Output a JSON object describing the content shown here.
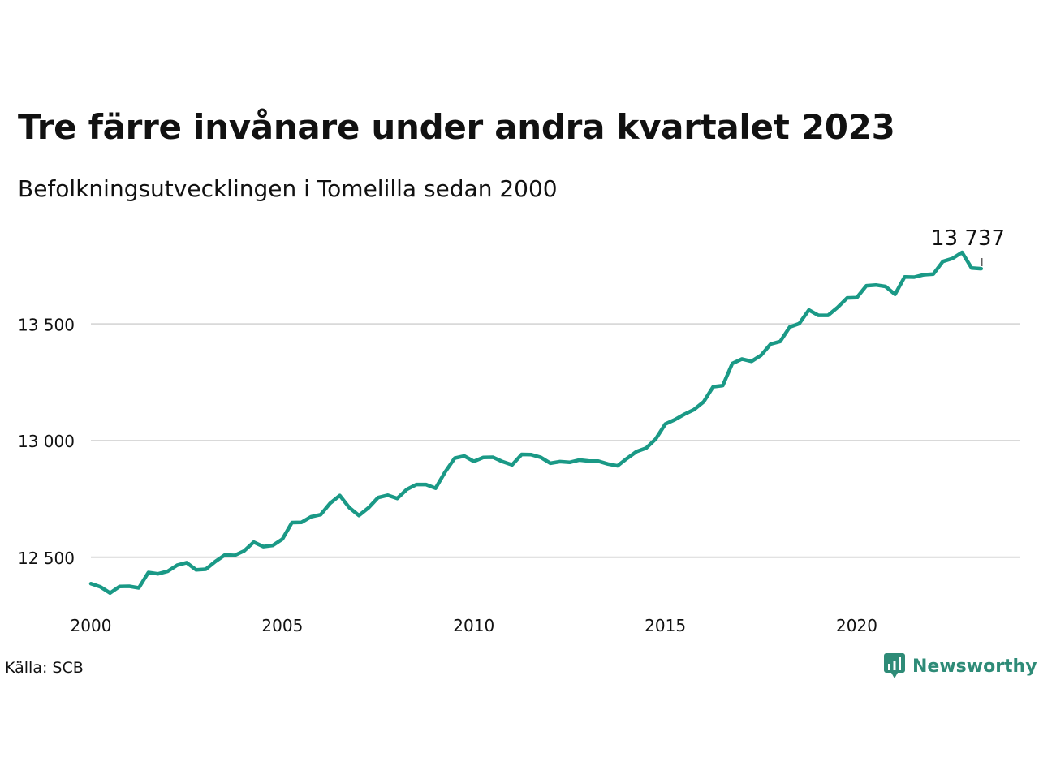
{
  "title": "Tre färre invånare under andra kvartalet 2023",
  "subtitle": "Befolkningsutvecklingen i Tomelilla sedan 2000",
  "source": "Källa: SCB",
  "brand": {
    "name": "Newsworthy",
    "icon": "newsworthy-logo-icon",
    "color": "#2e8b77"
  },
  "chart_data": {
    "type": "line",
    "title": "Tre färre invånare under andra kvartalet 2023",
    "subtitle": "Befolkningsutvecklingen i Tomelilla sedan 2000",
    "xlabel": "",
    "ylabel": "",
    "x_ticks": [
      {
        "value": 2000,
        "label": "2000"
      },
      {
        "value": 2005,
        "label": "2005"
      },
      {
        "value": 2010,
        "label": "2010"
      },
      {
        "value": 2015,
        "label": "2015"
      },
      {
        "value": 2020,
        "label": "2020"
      }
    ],
    "y_ticks": [
      {
        "value": 12500,
        "label": "12 500"
      },
      {
        "value": 13000,
        "label": "13 000"
      },
      {
        "value": 13500,
        "label": "13 500"
      }
    ],
    "xlim": [
      2000,
      2024.25
    ],
    "ylim": [
      12315,
      13880
    ],
    "grid": "horizontal",
    "line_color": "#1a9986",
    "annotation": {
      "label": "13 737",
      "x": 2023.25,
      "y": 13737
    },
    "series": [
      {
        "name": "",
        "x": [
          2000.0,
          2000.25,
          2000.5,
          2000.75,
          2001.0,
          2001.25,
          2001.5,
          2001.75,
          2002.0,
          2002.25,
          2002.5,
          2002.75,
          2003.0,
          2003.25,
          2003.5,
          2003.75,
          2004.0,
          2004.25,
          2004.5,
          2004.75,
          2005.0,
          2005.25,
          2005.5,
          2005.75,
          2006.0,
          2006.25,
          2006.5,
          2006.75,
          2007.0,
          2007.25,
          2007.5,
          2007.75,
          2008.0,
          2008.25,
          2008.5,
          2008.75,
          2009.0,
          2009.25,
          2009.5,
          2009.75,
          2010.0,
          2010.25,
          2010.5,
          2010.75,
          2011.0,
          2011.25,
          2011.5,
          2011.75,
          2012.0,
          2012.25,
          2012.5,
          2012.75,
          2013.0,
          2013.25,
          2013.5,
          2013.75,
          2014.0,
          2014.25,
          2014.5,
          2014.75,
          2015.0,
          2015.25,
          2015.5,
          2015.75,
          2016.0,
          2016.25,
          2016.5,
          2016.75,
          2017.0,
          2017.25,
          2017.5,
          2017.75,
          2018.0,
          2018.25,
          2018.5,
          2018.75,
          2019.0,
          2019.25,
          2019.5,
          2019.75,
          2020.0,
          2020.25,
          2020.5,
          2020.75,
          2021.0,
          2021.25,
          2021.5,
          2021.75,
          2022.0,
          2022.25,
          2022.5,
          2022.75,
          2023.0,
          2023.25
        ],
        "values": [
          12387,
          12373,
          12347,
          12375,
          12376,
          12369,
          12435,
          12429,
          12440,
          12466,
          12477,
          12446,
          12449,
          12482,
          12510,
          12508,
          12527,
          12565,
          12546,
          12551,
          12578,
          12649,
          12650,
          12674,
          12683,
          12732,
          12765,
          12713,
          12679,
          12712,
          12756,
          12766,
          12752,
          12791,
          12812,
          12812,
          12796,
          12866,
          12925,
          12934,
          12911,
          12928,
          12929,
          12910,
          12896,
          12941,
          12940,
          12928,
          12903,
          12910,
          12907,
          12917,
          12913,
          12912,
          12900,
          12892,
          12924,
          12953,
          12968,
          13007,
          13071,
          13090,
          13113,
          13133,
          13166,
          13231,
          13236,
          13331,
          13350,
          13340,
          13366,
          13414,
          13425,
          13487,
          13502,
          13560,
          13537,
          13537,
          13571,
          13612,
          13613,
          13664,
          13667,
          13661,
          13627,
          13702,
          13701,
          13711,
          13714,
          13768,
          13781,
          13807,
          13740,
          13737
        ]
      }
    ]
  }
}
